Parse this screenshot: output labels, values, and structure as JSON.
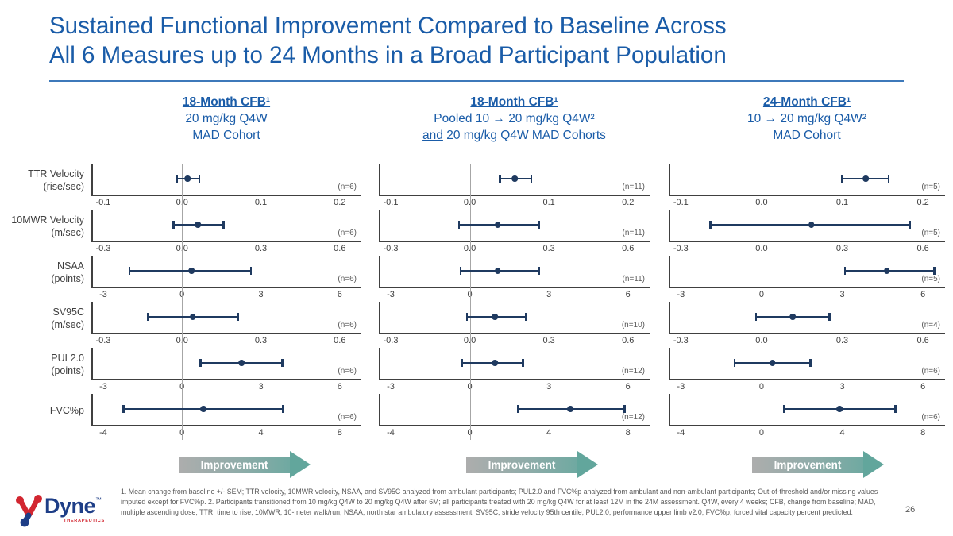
{
  "slide": {
    "title_line1": "Sustained Functional Improvement Compared to Baseline Across",
    "title_line2": "All 6 Measures up to 24 Months in a Broad Participant Population",
    "page_number": "26",
    "footnotes": "1. Mean change from baseline +/- SEM; TTR velocity, 10MWR velocity, NSAA, and SV95C analyzed from ambulant participants; PUL2.0 and FVC%p analyzed from ambulant and non-ambulant participants; Out-of-threshold and/or missing values imputed except for FVC%p.  2. Participants transitioned from 10 mg/kg Q4W to 20 mg/kg Q4W after 6M; all participants treated with 20 mg/kg Q4W for at least 12M in the 24M assessment. Q4W, every 4 weeks; CFB, change from baseline; MAD, multiple ascending dose; TTR, time to rise; 10MWR, 10-meter walk/run; NSAA, north star ambulatory assessment; SV95C, stride velocity 95th centile; PUL2.0, performance upper limb v2.0; FVC%p, forced vital capacity percent predicted.",
    "logo": {
      "brand": "Dyne",
      "tm": "™",
      "sub": "THERAPEUTICS"
    }
  },
  "columns": [
    {
      "header_line1": "18-Month CFB¹",
      "header_line2": "20 mg/kg Q4W",
      "header_line3_underlined": "",
      "header_line3": "MAD Cohort",
      "improvement_label": "Improvement"
    },
    {
      "header_line1": "18-Month CFB¹",
      "header_line2": "Pooled 10 → 20 mg/kg Q4W²",
      "header_line3_underlined": "and",
      "header_line3": " 20 mg/kg Q4W MAD Cohorts",
      "improvement_label": "Improvement"
    },
    {
      "header_line1": "24-Month CFB¹",
      "header_line2": "10 → 20 mg/kg Q4W²",
      "header_line3_underlined": "",
      "header_line3": "MAD Cohort",
      "improvement_label": "Improvement"
    }
  ],
  "chart_data": {
    "type": "scatter",
    "subtype": "forest-plot-dot-with-error-bars",
    "legend_position": "none",
    "grid": false,
    "columns": [
      "18-Month CFB 20 mg/kg Q4W MAD Cohort",
      "18-Month CFB Pooled 10→20 mg/kg Q4W and 20 mg/kg Q4W MAD Cohorts",
      "24-Month CFB 10→20 mg/kg Q4W MAD Cohort"
    ],
    "rows": [
      {
        "label_line1": "TTR Velocity",
        "label_line2": "(rise/sec)",
        "ticks": [
          "-0.1",
          "0.0",
          "0.1",
          "0.2"
        ],
        "tick_values": [
          -0.1,
          0.0,
          0.1,
          0.2
        ],
        "xlim": [
          -0.12,
          0.23
        ],
        "panels": [
          {
            "n": "(n=6)",
            "point": 0.005,
            "lo": -0.01,
            "hi": 0.021
          },
          {
            "n": "(n=11)",
            "point": 0.055,
            "lo": 0.035,
            "hi": 0.077
          },
          {
            "n": "(n=5)",
            "point": 0.127,
            "lo": 0.097,
            "hi": 0.157
          }
        ]
      },
      {
        "label_line1": "10MWR Velocity",
        "label_line2": "(m/sec)",
        "ticks": [
          "-0.3",
          "0.0",
          "0.3",
          "0.6"
        ],
        "tick_values": [
          -0.3,
          0.0,
          0.3,
          0.6
        ],
        "xlim": [
          -0.35,
          0.68
        ],
        "panels": [
          {
            "n": "(n=6)",
            "point": 0.055,
            "lo": -0.042,
            "hi": 0.155
          },
          {
            "n": "(n=11)",
            "point": 0.1,
            "lo": -0.05,
            "hi": 0.26
          },
          {
            "n": "(n=5)",
            "point": 0.18,
            "lo": -0.2,
            "hi": 0.55
          }
        ]
      },
      {
        "label_line1": "NSAA",
        "label_line2": "(points)",
        "ticks": [
          "-3",
          "0",
          "3",
          "6"
        ],
        "tick_values": [
          -3,
          0,
          3,
          6
        ],
        "xlim": [
          -3.5,
          6.8
        ],
        "panels": [
          {
            "n": "(n=6)",
            "point": 0.3,
            "lo": -2.1,
            "hi": 2.6
          },
          {
            "n": "(n=11)",
            "point": 1.0,
            "lo": -0.45,
            "hi": 2.6
          },
          {
            "n": "(n=5)",
            "point": 4.6,
            "lo": 3.0,
            "hi": 6.4
          }
        ]
      },
      {
        "label_line1": "SV95C",
        "label_line2": "(m/sec)",
        "ticks": [
          "-0.3",
          "0.0",
          "0.3",
          "0.6"
        ],
        "tick_values": [
          -0.3,
          0.0,
          0.3,
          0.6
        ],
        "xlim": [
          -0.35,
          0.68
        ],
        "panels": [
          {
            "n": "(n=6)",
            "point": 0.035,
            "lo": -0.14,
            "hi": 0.21
          },
          {
            "n": "(n=10)",
            "point": 0.09,
            "lo": -0.02,
            "hi": 0.21
          },
          {
            "n": "(n=4)",
            "point": 0.11,
            "lo": -0.03,
            "hi": 0.25
          }
        ]
      },
      {
        "label_line1": "PUL2.0",
        "label_line2": "(points)",
        "ticks": [
          "-3",
          "0",
          "3",
          "6"
        ],
        "tick_values": [
          -3,
          0,
          3,
          6
        ],
        "xlim": [
          -3.5,
          6.8
        ],
        "panels": [
          {
            "n": "(n=6)",
            "point": 2.2,
            "lo": 0.6,
            "hi": 3.8
          },
          {
            "n": "(n=12)",
            "point": 0.9,
            "lo": -0.4,
            "hi": 2.0
          },
          {
            "n": "(n=6)",
            "point": 0.35,
            "lo": -1.1,
            "hi": 1.8
          }
        ]
      },
      {
        "label_line1": "FVC%p",
        "label_line2": "",
        "ticks": [
          "-4",
          "0",
          "4",
          "8"
        ],
        "tick_values": [
          -4,
          0,
          4,
          8
        ],
        "xlim": [
          -4.7,
          9.0
        ],
        "panels": [
          {
            "n": "(n=6)",
            "point": 1.0,
            "lo": -3.1,
            "hi": 5.1
          },
          {
            "n": "(n=12)",
            "point": 5.0,
            "lo": 2.3,
            "hi": 7.8
          },
          {
            "n": "(n=6)",
            "point": 3.8,
            "lo": 1.0,
            "hi": 6.6
          }
        ]
      }
    ]
  },
  "colors": {
    "title_blue": "#1A5CA8",
    "point_navy": "#1F3A60",
    "zero_line_gray": "#A6A6A6",
    "axis_dark": "#404040",
    "footnote_gray": "#595959",
    "arrow_teal": "#62A69C",
    "arrow_gray": "#ADADAD",
    "logo_red": "#D22630",
    "logo_blue": "#1E3E87"
  }
}
